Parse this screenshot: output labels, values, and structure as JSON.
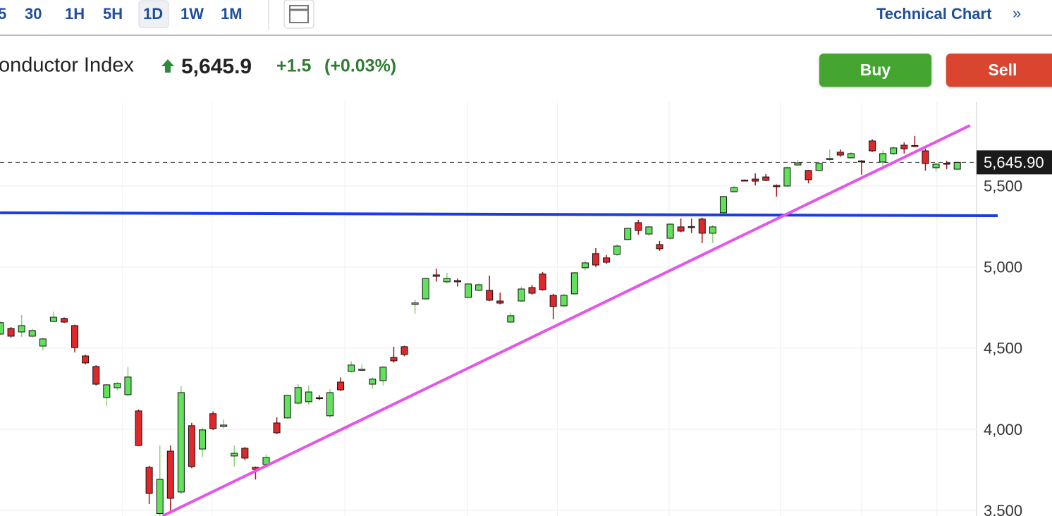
{
  "toolbar": {
    "intervals": [
      "5",
      "30",
      "1H",
      "5H",
      "1D",
      "1W",
      "1M"
    ],
    "link": "Technical Chart",
    "link_arrow": "»"
  },
  "header": {
    "name": "onductor Index",
    "price": "5,645.9",
    "change": "+1.5",
    "change_pct": "(+0.03%)",
    "buy": "Buy",
    "sell": "Sell"
  },
  "chart_data": {
    "type": "candlestick",
    "open": [
      4587,
      4622,
      4600,
      4574,
      4513,
      4665,
      4683,
      4639,
      4452,
      4387,
      4196,
      4256,
      4213,
      4113,
      3765,
      3480,
      3865,
      3613,
      4022,
      3878,
      4096,
      4017,
      3835,
      3883,
      3765,
      3783,
      4039,
      4070,
      4161,
      4170,
      4195,
      4083,
      4291,
      4357,
      4365,
      4278,
      4300,
      4443,
      4509,
      4770,
      4804,
      4952,
      4909,
      4917,
      4813,
      4857,
      4857,
      4791,
      4661,
      4791,
      4874,
      4957,
      4826,
      4761,
      4835,
      4996,
      5083,
      5057,
      5078,
      5170,
      5274,
      5204,
      5139,
      5178,
      5248,
      5250,
      5296,
      5209,
      5335,
      5465,
      5537,
      5543,
      5556,
      5504,
      5500,
      5630,
      5596,
      5596,
      5665,
      5709,
      5674,
      5655,
      5778,
      5648,
      5700,
      5752,
      5750,
      5717,
      5613,
      5641,
      5604
    ],
    "high": [
      4665,
      4630,
      4704,
      4620,
      4565,
      4726,
      4690,
      4645,
      4460,
      4395,
      4280,
      4290,
      4383,
      4122,
      3775,
      3900,
      3900,
      4265,
      4040,
      4010,
      4110,
      4060,
      3900,
      3890,
      3770,
      3845,
      4074,
      4213,
      4278,
      4270,
      4210,
      4248,
      4320,
      4420,
      4400,
      4320,
      4390,
      4509,
      4515,
      4800,
      4935,
      4991,
      4965,
      4930,
      4900,
      4900,
      4948,
      4843,
      4720,
      4880,
      4891,
      4970,
      4835,
      4835,
      4970,
      5040,
      5117,
      5075,
      5140,
      5245,
      5291,
      5255,
      5161,
      5270,
      5300,
      5300,
      5305,
      5260,
      5440,
      5500,
      5540,
      5578,
      5574,
      5510,
      5620,
      5660,
      5600,
      5650,
      5726,
      5726,
      5710,
      5660,
      5790,
      5720,
      5745,
      5770,
      5809,
      5730,
      5643,
      5656,
      5650
    ],
    "low": [
      4580,
      4565,
      4570,
      4565,
      4487,
      4660,
      4655,
      4474,
      4400,
      4270,
      4143,
      4240,
      4205,
      3895,
      3539,
      3465,
      3480,
      3600,
      3760,
      3830,
      3995,
      4005,
      3770,
      3810,
      3690,
      3780,
      3970,
      4065,
      4150,
      4150,
      4180,
      4070,
      4235,
      4350,
      4360,
      4250,
      4270,
      4410,
      4450,
      4713,
      4800,
      4910,
      4900,
      4880,
      4810,
      4850,
      4790,
      4770,
      4655,
      4785,
      4830,
      4855,
      4678,
      4755,
      4830,
      4980,
      5000,
      5020,
      5070,
      5165,
      5200,
      5195,
      5100,
      5170,
      5215,
      5210,
      5148,
      5148,
      5330,
      5460,
      5530,
      5504,
      5530,
      5435,
      5495,
      5625,
      5517,
      5590,
      5655,
      5680,
      5670,
      5570,
      5710,
      5595,
      5690,
      5700,
      5740,
      5595,
      5590,
      5604,
      5600
    ],
    "close": [
      4657,
      4574,
      4639,
      4609,
      4557,
      4691,
      4661,
      4504,
      4409,
      4278,
      4274,
      4283,
      4322,
      3900,
      3604,
      3691,
      3574,
      4226,
      3770,
      3996,
      4004,
      4026,
      3852,
      3822,
      3752,
      3826,
      3978,
      4209,
      4257,
      4230,
      4189,
      4226,
      4243,
      4396,
      4370,
      4309,
      4383,
      4422,
      4461,
      4779,
      4930,
      4943,
      4930,
      4909,
      4896,
      4891,
      4796,
      4778,
      4700,
      4865,
      4839,
      4861,
      4757,
      4826,
      4965,
      5026,
      5013,
      5030,
      5130,
      5239,
      5226,
      5248,
      5113,
      5265,
      5222,
      5244,
      5209,
      5248,
      5435,
      5491,
      5535,
      5530,
      5535,
      5496,
      5613,
      5643,
      5539,
      5639,
      5670,
      5691,
      5700,
      5650,
      5717,
      5700,
      5735,
      5730,
      5746,
      5639,
      5635,
      5637,
      5645.9
    ],
    "up_color": "#62e25c",
    "down_color": "#e0282a",
    "ylim": [
      3465,
      6017
    ],
    "yticks": [
      {
        "value": 3500,
        "label": "3,500"
      },
      {
        "value": 4000,
        "label": "4,000"
      },
      {
        "value": 4500,
        "label": "4,500"
      },
      {
        "value": 5000,
        "label": "5,000"
      },
      {
        "value": 5500,
        "label": "5,500"
      }
    ],
    "xgrid": [
      11.5,
      19.9,
      32.4,
      43.9,
      52.4,
      62.9,
      73.4,
      81.0,
      88.1
    ],
    "grid": true,
    "last_price": {
      "value": 5645.9,
      "label": "5,645.90"
    },
    "support_line": {
      "color": "#1a3de0",
      "x": [
        -0.03,
        93.8
      ],
      "y": [
        5335,
        5317
      ]
    },
    "trendline": {
      "color": "#e356e8",
      "x": [
        15.25,
        91.2
      ],
      "y": [
        3465,
        5874
      ]
    }
  }
}
